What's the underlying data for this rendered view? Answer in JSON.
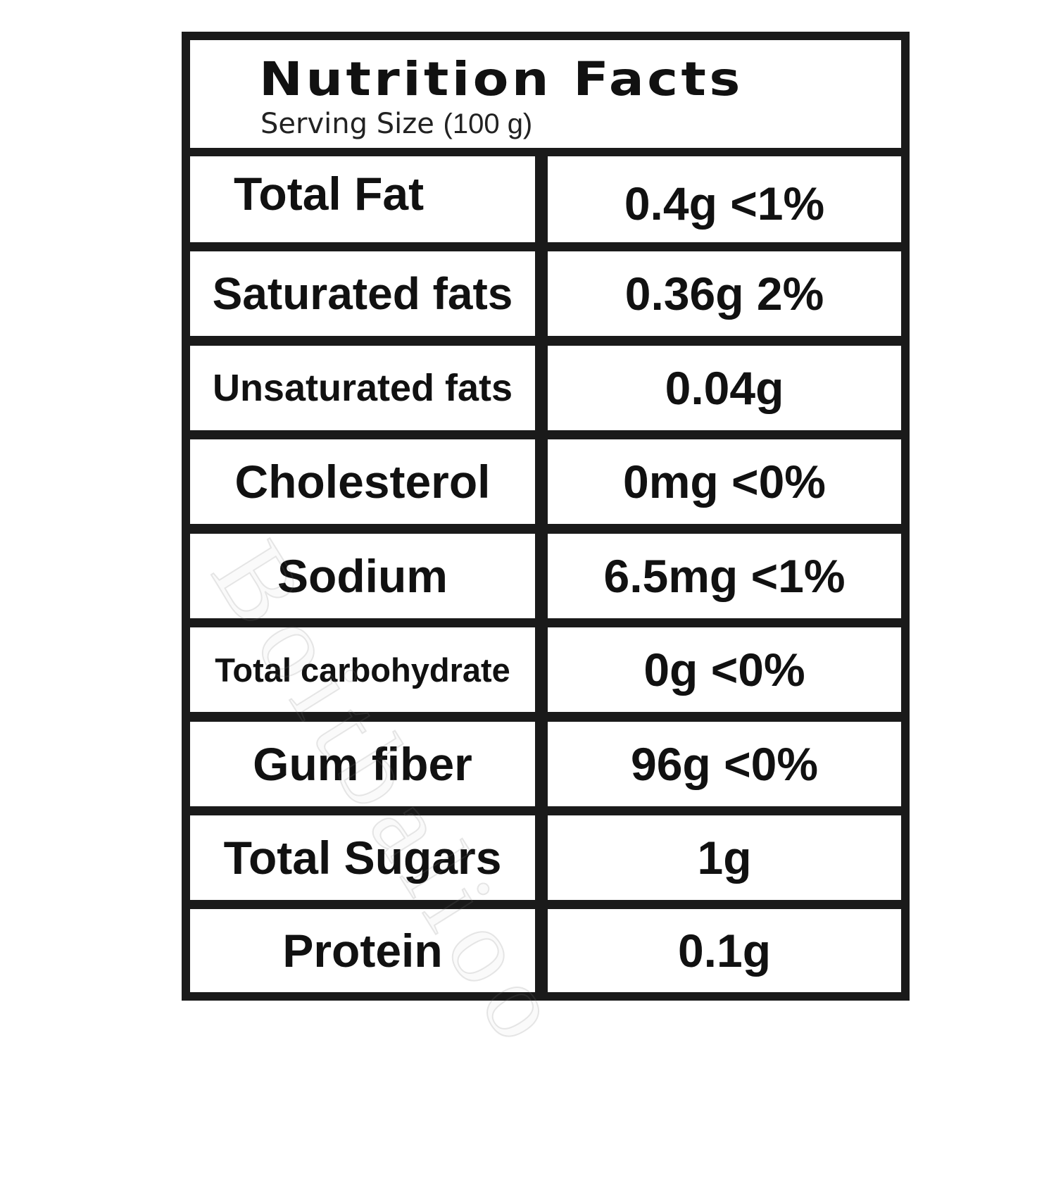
{
  "title": "Nutrition Facts",
  "serving_label": "Serving Size",
  "serving_value": "(100 g)",
  "rows": [
    {
      "name": "Total Fat",
      "value": "0.4g <1%"
    },
    {
      "name": "Saturated fats",
      "value": "0.36g 2%"
    },
    {
      "name": "Unsaturated fats",
      "value": "0.04g"
    },
    {
      "name": "Cholesterol",
      "value": "0mg <0%"
    },
    {
      "name": "Sodium",
      "value": "6.5mg <1%"
    },
    {
      "name": "Total carbohydrate",
      "value": "0g <0%"
    },
    {
      "name": "Gum fiber",
      "value": "96g <0%"
    },
    {
      "name": "Total Sugars",
      "value": "1g"
    },
    {
      "name": "Protein",
      "value": "0.1g"
    }
  ],
  "watermark": "Boitbalioo",
  "colors": {
    "border": "#1a1a1a",
    "background": "#ffffff",
    "text": "#111111"
  }
}
